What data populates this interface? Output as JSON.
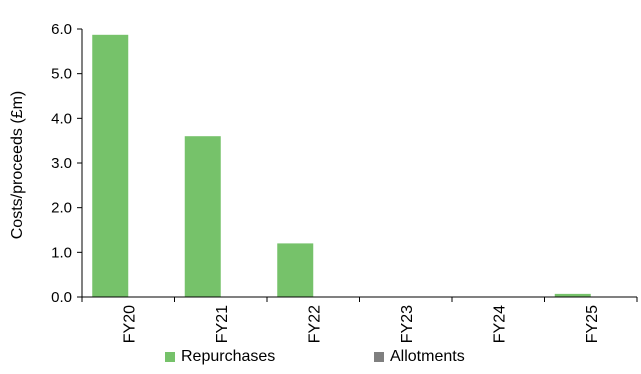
{
  "chart_data": {
    "type": "bar",
    "ylabel": "Costs/proceeds (£m)",
    "ylim": [
      0,
      6
    ],
    "yticks": [
      "0.0",
      "1.0",
      "2.0",
      "3.0",
      "4.0",
      "5.0",
      "6.0"
    ],
    "categories": [
      "FY20",
      "FY21",
      "FY22",
      "FY23",
      "FY24",
      "FY25"
    ],
    "series": [
      {
        "name": "Repurchases",
        "color": "#76c26a",
        "values": [
          5.87,
          3.6,
          1.2,
          0.0,
          0.0,
          0.07
        ]
      },
      {
        "name": "Allotments",
        "color": "#7f7f7f",
        "values": [
          0.0,
          0.0,
          0.0,
          0.0,
          0.0,
          0.0
        ]
      }
    ],
    "legend_position": "bottom",
    "grid": false
  }
}
